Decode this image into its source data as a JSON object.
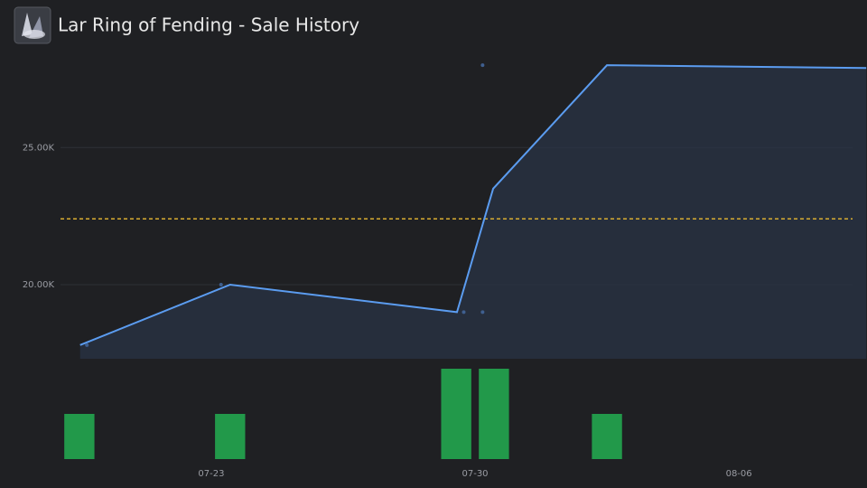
{
  "chart_data": [
    {
      "type": "line",
      "title": "Lar Ring of Fending - Sale History",
      "x": [
        19.52,
        23.5,
        29.52,
        30.48,
        33.5,
        40.38
      ],
      "values": [
        17800,
        20000,
        19000,
        23500,
        28000,
        27900
      ],
      "color": "#5b9cf0",
      "points": {
        "x": [
          19.7,
          23.26,
          29.7,
          30.2,
          30.2
        ],
        "values": [
          17800,
          20000,
          19000,
          19000,
          28000
        ],
        "color": "#3f5f8f"
      },
      "average": 22400,
      "average_color": "#d9ae32",
      "xlim": [
        19,
        40.4
      ],
      "ylim": [
        17300,
        28500
      ],
      "yticks": [
        {
          "value": 20000,
          "label": "20.00K"
        },
        {
          "value": 25000,
          "label": "25.00K"
        }
      ],
      "grid": true
    },
    {
      "type": "bar",
      "x": [
        19.5,
        23.5,
        29.5,
        30.5,
        33.5
      ],
      "values": [
        1,
        1,
        2,
        2,
        1
      ],
      "color": "#22994a",
      "xlim": [
        19,
        40.4
      ],
      "ylim": [
        0,
        2
      ],
      "xticks": [
        {
          "value": 23,
          "label": "07-23"
        },
        {
          "value": 30,
          "label": "07-30"
        },
        {
          "value": 37,
          "label": "08-06"
        }
      ]
    }
  ]
}
